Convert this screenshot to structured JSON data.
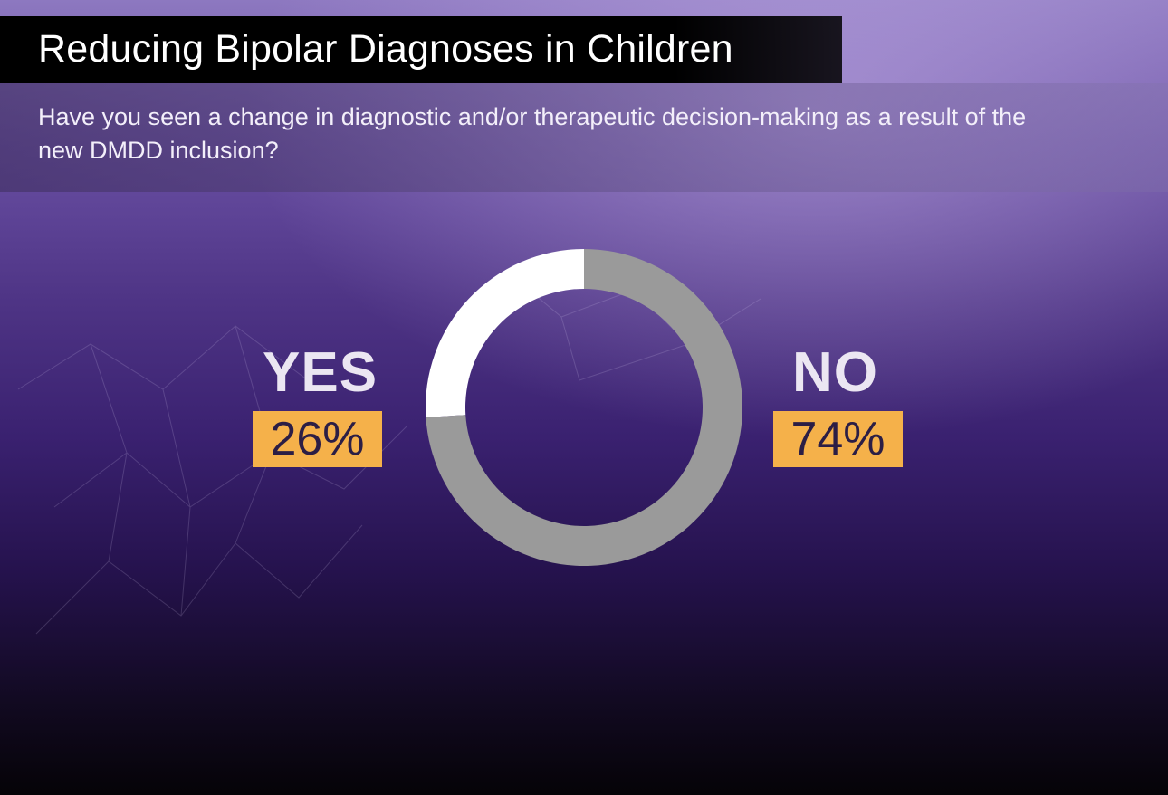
{
  "title": "Reducing Bipolar Diagnoses in Children",
  "question": "Have you seen a change in diagnostic and/or therapeutic decision-making as a result of the new DMDD inclusion?",
  "colors": {
    "yes_segment": "#ffffff",
    "no_segment": "#9a9a9a",
    "badge": "#f5b14a",
    "badge_text": "#2c1e45"
  },
  "chart_data": {
    "type": "pie",
    "variant": "donut",
    "title": "Reducing Bipolar Diagnoses in Children",
    "categories": [
      "YES",
      "NO"
    ],
    "values": [
      26,
      74
    ],
    "value_labels": [
      "26%",
      "74%"
    ],
    "unit": "%"
  }
}
